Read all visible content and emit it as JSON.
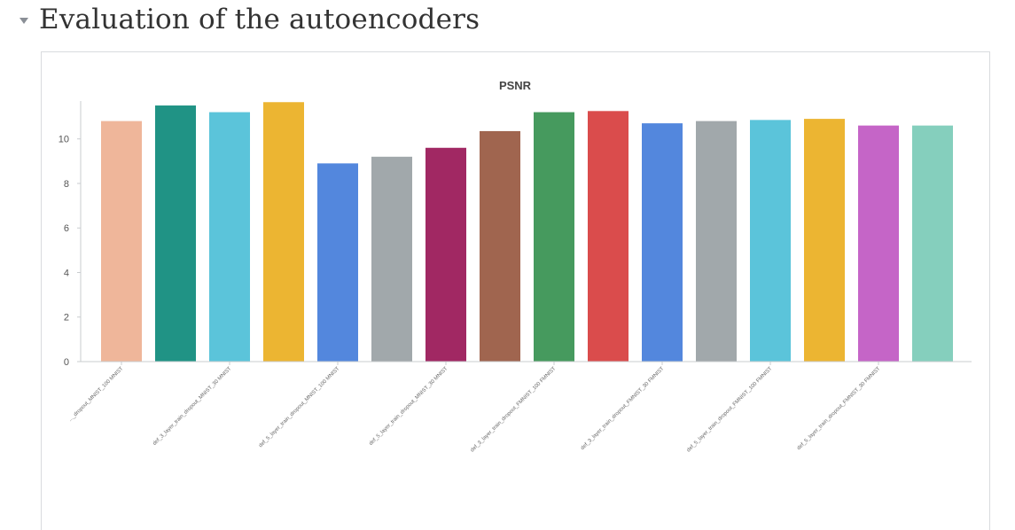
{
  "section": {
    "title": "Evaluation of the autoencoders"
  },
  "chart_data": {
    "type": "bar",
    "title": "PSNR",
    "xlabel": "",
    "ylabel": "",
    "ylim": [
      0,
      11.7
    ],
    "yticks": [
      0,
      2,
      4,
      6,
      8,
      10
    ],
    "grid": false,
    "categories": [
      "def_3_layer_train_dropout_MNIST_100 MNIST",
      "def_3_layer_train_dropout_MNIST_30 MNIST",
      "def_3_layer_train_dropout_MNIST_30 MNIST",
      "def_5_layer_train_dropout_MNIST_100 MNIST",
      "def_5_layer_train_dropout_MNIST_100 MNIST",
      "def_5_layer_train_dropout_MNIST_30 MNIST",
      "def_5_layer_train_dropout_MNIST_30 MNIST",
      "def_3_layer_train_dropout_FMNIST_100 FMNIST",
      "def_3_layer_train_dropout_FMNIST_100 FMNIST",
      "def_3_layer_train_dropout_FMNIST_30 FMNIST",
      "def_3_layer_train_dropout_FMNIST_30 FMNIST",
      "def_5_layer_train_dropout_FMNIST_100 FMNIST",
      "def_5_layer_train_dropout_FMNIST_100 FMNIST",
      "def_5_layer_train_dropout_FMNIST_30 FMNIST",
      "def_5_layer_train_dropout_FMNIST_30 FMNIST",
      "def_5_layer_train_dropout_FMNIST_30 FMNIST"
    ],
    "visible_tick_labels": [
      "..._dropout_MNIST_100 MNIST",
      "def_3_layer_train_dropout_MNIST_30 MNIST",
      "def_5_layer_train_dropout_MNIST_100 MNIST",
      "def_5_layer_train_dropout_MNIST_30 MNIST",
      "def_3_layer_train_dropout_FMNIST_100 FMNIST",
      "def_3_layer_train_dropout_FMNIST_30 FMNIST",
      "def_5_layer_train_dropout_FMNIST_100 FMNIST",
      "def_5_layer_train_dropout_FMNIST_30 FMNIST"
    ],
    "values": [
      10.8,
      11.5,
      11.2,
      11.65,
      8.9,
      9.2,
      9.6,
      10.35,
      11.2,
      11.25,
      10.7,
      10.8,
      10.85,
      10.9,
      10.6,
      10.6
    ],
    "colors": [
      "#efb69a",
      "#209385",
      "#5bc4da",
      "#ecb532",
      "#5387dd",
      "#a1a8ab",
      "#a12863",
      "#a0654f",
      "#469a5e",
      "#da4c4c",
      "#5387dd",
      "#a1a8ab",
      "#5bc4da",
      "#ecb532",
      "#c565c7",
      "#85cfbd"
    ]
  }
}
